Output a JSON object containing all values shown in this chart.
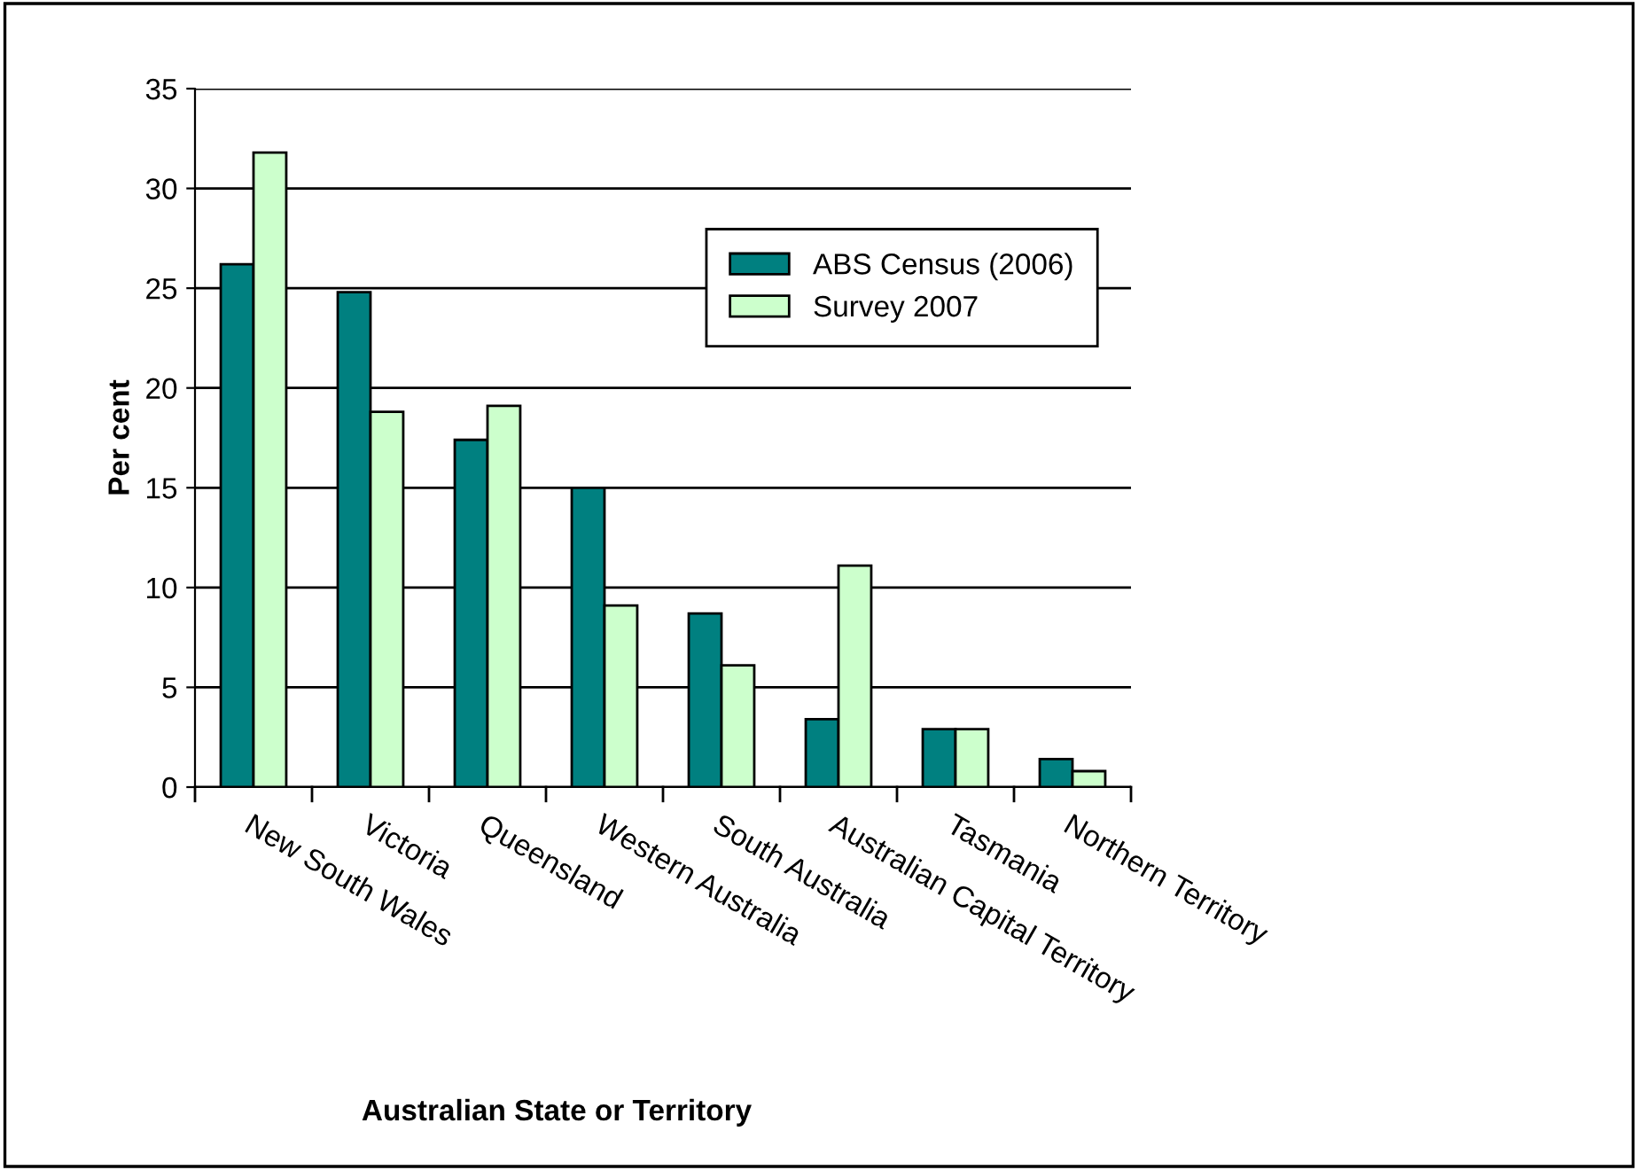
{
  "chart_data": {
    "type": "bar",
    "xlabel": "Australian State or Territory",
    "ylabel": "Per cent",
    "categories": [
      "New South Wales",
      "Victoria",
      "Queensland",
      "Western Australia",
      "South Australia",
      "Australian Capital Territory",
      "Tasmania",
      "Northern Territory"
    ],
    "series": [
      {
        "name": "ABS Census (2006)",
        "color": "#008080",
        "values": [
          26.2,
          24.8,
          17.4,
          15.0,
          8.7,
          3.4,
          2.9,
          1.4
        ]
      },
      {
        "name": "Survey 2007",
        "color": "#ccffcc",
        "values": [
          31.8,
          18.8,
          19.1,
          9.1,
          6.1,
          11.1,
          2.9,
          0.8
        ]
      }
    ],
    "ylim": [
      0,
      35
    ],
    "yticks": [
      0,
      5,
      10,
      15,
      20,
      25,
      30,
      35
    ],
    "grid": "y",
    "legend": "top right"
  }
}
